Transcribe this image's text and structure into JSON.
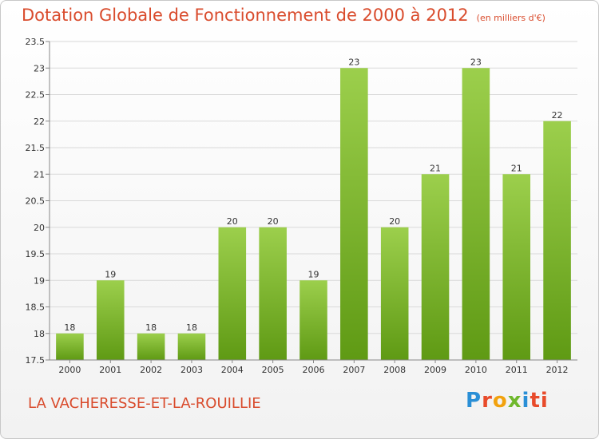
{
  "page": {
    "title": "Dotation Globale de Fonctionnement de 2000 à 2012",
    "unit": "(en milliers d'€)",
    "commune": "LA VACHERESSE-ET-LA-ROUILLIE",
    "logo_letters": [
      "P",
      "r",
      "o",
      "x",
      "i",
      "ti"
    ]
  },
  "colors": {
    "title": "#d94b2c",
    "bar_light": "#9ccf4c",
    "bar_dark": "#5f9a14",
    "grid": "#d9d9d9",
    "axis": "#888888"
  },
  "chart_data": {
    "type": "bar",
    "title": "Dotation Globale de Fonctionnement de 2000 à 2012",
    "xlabel": "",
    "ylabel": "",
    "categories": [
      "2000",
      "2001",
      "2002",
      "2003",
      "2004",
      "2005",
      "2006",
      "2007",
      "2008",
      "2009",
      "2010",
      "2011",
      "2012"
    ],
    "values": [
      18,
      19,
      18,
      18,
      20,
      20,
      19,
      23,
      20,
      21,
      23,
      21,
      22
    ],
    "labels": [
      "18",
      "19",
      "18",
      "18",
      "20",
      "20",
      "19",
      "23",
      "20",
      "21",
      "23",
      "21",
      "22"
    ],
    "ylim": [
      17.5,
      23.5
    ],
    "yticks": [
      17.5,
      18,
      18.5,
      19,
      19.5,
      20,
      20.5,
      21,
      21.5,
      22,
      22.5,
      23,
      23.5
    ],
    "ytick_labels": [
      "17.5",
      "18",
      "18.5",
      "19",
      "19.5",
      "20",
      "20.5",
      "21",
      "21.5",
      "22",
      "22.5",
      "23",
      "23.5"
    ],
    "grid": true
  }
}
